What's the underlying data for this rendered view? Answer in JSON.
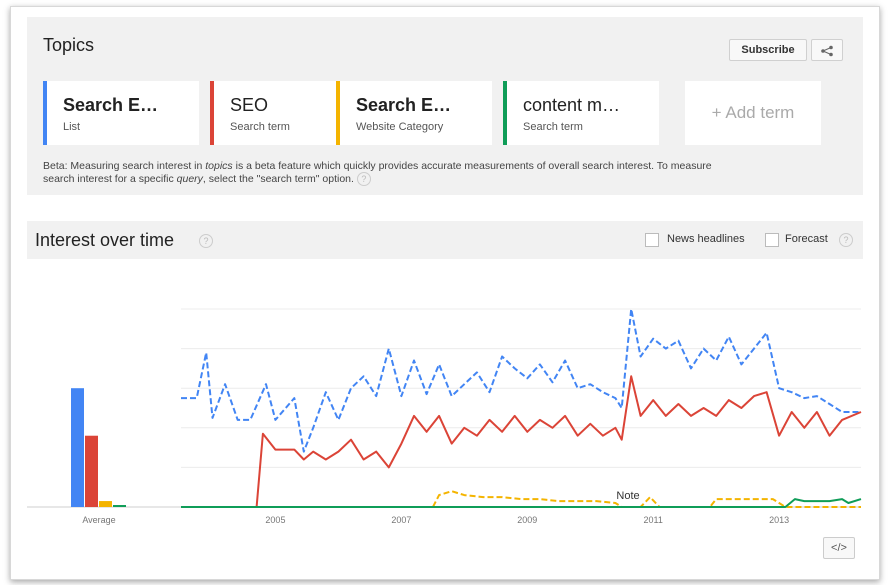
{
  "topics": {
    "title": "Topics",
    "subscribe_label": "Subscribe",
    "share_icon": "share-icon",
    "terms": [
      {
        "title": "Search E…",
        "subtitle": "List",
        "color": "#4285f4",
        "bold": true
      },
      {
        "title": "SEO",
        "subtitle": "Search term",
        "color": "#db4437",
        "bold": false
      },
      {
        "title": "Search E…",
        "subtitle": "Website Category",
        "color": "#f4b400",
        "bold": true
      },
      {
        "title": "content m…",
        "subtitle": "Search term",
        "color": "#0f9d58",
        "bold": false
      }
    ],
    "add_term_label": "+ Add term",
    "beta_text_1": "Beta: Measuring search interest in ",
    "beta_text_topics": "topics",
    "beta_text_2": " is a beta feature which quickly provides accurate measurements of overall search interest. To measure search interest for a specific ",
    "beta_text_query": "query",
    "beta_text_3": ", select the \"search term\" option.",
    "help_mark": "?"
  },
  "interest": {
    "title": "Interest over time",
    "help_mark": "?",
    "news_headlines_label": "News headlines",
    "forecast_label": "Forecast",
    "embed_label": "</>"
  },
  "chart_data": {
    "type": "line",
    "x_ticks": [
      "2005",
      "2007",
      "2009",
      "2011",
      "2013"
    ],
    "x_range": [
      2004.0,
      2014.8
    ],
    "y_range": [
      0,
      100
    ],
    "grid": true,
    "legend": "none",
    "average_label": "Average",
    "note_label": "Note",
    "averages": [
      {
        "name": "Search E…",
        "value": 60,
        "color": "#4285f4"
      },
      {
        "name": "SEO",
        "value": 36,
        "color": "#db4437"
      },
      {
        "name": "Search E…",
        "value": 3,
        "color": "#f4b400"
      },
      {
        "name": "content m…",
        "value": 1,
        "color": "#0f9d58"
      }
    ],
    "series": [
      {
        "name": "Search E…",
        "color": "#4285f4",
        "dashed": true,
        "points": [
          [
            2004.0,
            55
          ],
          [
            2004.25,
            55
          ],
          [
            2004.4,
            78
          ],
          [
            2004.5,
            45
          ],
          [
            2004.7,
            62
          ],
          [
            2004.9,
            44
          ],
          [
            2005.1,
            44
          ],
          [
            2005.35,
            62
          ],
          [
            2005.5,
            44
          ],
          [
            2005.8,
            55
          ],
          [
            2005.95,
            28
          ],
          [
            2006.1,
            40
          ],
          [
            2006.3,
            58
          ],
          [
            2006.5,
            44
          ],
          [
            2006.7,
            60
          ],
          [
            2006.9,
            66
          ],
          [
            2007.1,
            56
          ],
          [
            2007.3,
            80
          ],
          [
            2007.5,
            56
          ],
          [
            2007.7,
            74
          ],
          [
            2007.9,
            57
          ],
          [
            2008.1,
            72
          ],
          [
            2008.3,
            56
          ],
          [
            2008.5,
            62
          ],
          [
            2008.7,
            68
          ],
          [
            2008.9,
            58
          ],
          [
            2009.1,
            76
          ],
          [
            2009.3,
            70
          ],
          [
            2009.5,
            65
          ],
          [
            2009.7,
            72
          ],
          [
            2009.9,
            63
          ],
          [
            2010.1,
            74
          ],
          [
            2010.3,
            60
          ],
          [
            2010.5,
            62
          ],
          [
            2010.7,
            58
          ],
          [
            2010.9,
            55
          ],
          [
            2011.0,
            50
          ],
          [
            2011.15,
            100
          ],
          [
            2011.3,
            76
          ],
          [
            2011.5,
            85
          ],
          [
            2011.7,
            80
          ],
          [
            2011.9,
            84
          ],
          [
            2012.1,
            70
          ],
          [
            2012.3,
            80
          ],
          [
            2012.5,
            74
          ],
          [
            2012.7,
            86
          ],
          [
            2012.9,
            72
          ],
          [
            2013.1,
            80
          ],
          [
            2013.3,
            88
          ],
          [
            2013.5,
            60
          ],
          [
            2013.7,
            58
          ],
          [
            2013.9,
            55
          ],
          [
            2014.1,
            56
          ],
          [
            2014.3,
            52
          ],
          [
            2014.5,
            48
          ],
          [
            2014.8,
            48
          ]
        ]
      },
      {
        "name": "SEO",
        "color": "#db4437",
        "dashed": false,
        "points": [
          [
            2004.0,
            0
          ],
          [
            2005.2,
            0
          ],
          [
            2005.3,
            37
          ],
          [
            2005.5,
            29
          ],
          [
            2005.8,
            29
          ],
          [
            2005.95,
            24
          ],
          [
            2006.1,
            28
          ],
          [
            2006.3,
            24
          ],
          [
            2006.5,
            28
          ],
          [
            2006.7,
            34
          ],
          [
            2006.9,
            24
          ],
          [
            2007.1,
            28
          ],
          [
            2007.3,
            20
          ],
          [
            2007.5,
            32
          ],
          [
            2007.7,
            46
          ],
          [
            2007.9,
            38
          ],
          [
            2008.1,
            46
          ],
          [
            2008.3,
            32
          ],
          [
            2008.5,
            40
          ],
          [
            2008.7,
            36
          ],
          [
            2008.9,
            44
          ],
          [
            2009.1,
            38
          ],
          [
            2009.3,
            46
          ],
          [
            2009.5,
            38
          ],
          [
            2009.7,
            44
          ],
          [
            2009.9,
            40
          ],
          [
            2010.1,
            46
          ],
          [
            2010.3,
            36
          ],
          [
            2010.5,
            42
          ],
          [
            2010.7,
            36
          ],
          [
            2010.9,
            40
          ],
          [
            2011.0,
            34
          ],
          [
            2011.15,
            66
          ],
          [
            2011.3,
            46
          ],
          [
            2011.5,
            54
          ],
          [
            2011.7,
            46
          ],
          [
            2011.9,
            52
          ],
          [
            2012.1,
            46
          ],
          [
            2012.3,
            50
          ],
          [
            2012.5,
            46
          ],
          [
            2012.7,
            54
          ],
          [
            2012.9,
            50
          ],
          [
            2013.1,
            56
          ],
          [
            2013.3,
            58
          ],
          [
            2013.5,
            36
          ],
          [
            2013.7,
            48
          ],
          [
            2013.9,
            40
          ],
          [
            2014.1,
            48
          ],
          [
            2014.3,
            36
          ],
          [
            2014.5,
            44
          ],
          [
            2014.8,
            48
          ]
        ]
      },
      {
        "name": "Search E…",
        "color": "#f4b400",
        "dashed": true,
        "points": [
          [
            2004.0,
            0
          ],
          [
            2008.0,
            0
          ],
          [
            2008.1,
            6
          ],
          [
            2008.3,
            8
          ],
          [
            2008.5,
            6
          ],
          [
            2008.8,
            5
          ],
          [
            2009.1,
            5
          ],
          [
            2009.4,
            4
          ],
          [
            2009.7,
            4
          ],
          [
            2010.0,
            3
          ],
          [
            2010.3,
            3
          ],
          [
            2010.6,
            3
          ],
          [
            2010.9,
            2
          ],
          [
            2011.0,
            0
          ],
          [
            2011.3,
            0
          ],
          [
            2011.45,
            5
          ],
          [
            2011.6,
            0
          ],
          [
            2012.4,
            0
          ],
          [
            2012.5,
            4
          ],
          [
            2012.8,
            4
          ],
          [
            2013.1,
            4
          ],
          [
            2013.4,
            4
          ],
          [
            2013.6,
            0
          ],
          [
            2014.8,
            0
          ]
        ]
      },
      {
        "name": "content m…",
        "color": "#0f9d58",
        "dashed": false,
        "points": [
          [
            2004.0,
            0
          ],
          [
            2013.6,
            0
          ],
          [
            2013.75,
            4
          ],
          [
            2013.9,
            3
          ],
          [
            2014.1,
            3
          ],
          [
            2014.3,
            3
          ],
          [
            2014.5,
            4
          ],
          [
            2014.6,
            2
          ],
          [
            2014.8,
            4
          ]
        ]
      }
    ]
  }
}
